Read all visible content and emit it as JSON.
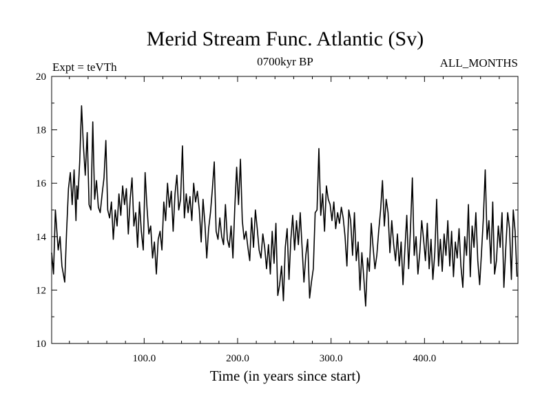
{
  "chart_data": {
    "type": "line",
    "title": "Merid Stream Func. Atlantic (Sv)",
    "subtitle": "0700kyr BP",
    "left_note": "Expt = teVTh",
    "right_note": "ALL_MONTHS",
    "xlabel": "Time (in years since start)",
    "ylabel": "",
    "xlim": [
      1,
      500
    ],
    "ylim": [
      10,
      20
    ],
    "xticks": [
      100,
      200,
      300,
      400
    ],
    "xtick_labels": [
      "100.0",
      "200.0",
      "300.0",
      "400.0"
    ],
    "yticks": [
      10,
      12,
      14,
      16,
      18,
      20
    ],
    "ytick_labels": [
      "10",
      "12",
      "14",
      "16",
      "18",
      "20"
    ],
    "grid": false,
    "series": [
      {
        "color": "#000000",
        "x": [
          1,
          3,
          5,
          8,
          10,
          12,
          15,
          17,
          19,
          21,
          23,
          25,
          27,
          28,
          29,
          31,
          33,
          35,
          37,
          39,
          41,
          43,
          45,
          47,
          49,
          51,
          53,
          55,
          57,
          59,
          61,
          63,
          65,
          67,
          69,
          71,
          73,
          75,
          77,
          79,
          81,
          83,
          85,
          87,
          89,
          91,
          93,
          95,
          97,
          99,
          101,
          103,
          105,
          107,
          109,
          111,
          113,
          115,
          117,
          119,
          121,
          123,
          125,
          127,
          129,
          131,
          133,
          135,
          137,
          139,
          141,
          143,
          145,
          147,
          149,
          151,
          153,
          155,
          157,
          159,
          161,
          163,
          165,
          167,
          169,
          171,
          173,
          175,
          177,
          179,
          181,
          183,
          185,
          187,
          189,
          191,
          193,
          195,
          197,
          199,
          201,
          203,
          205,
          207,
          209,
          211,
          213,
          215,
          217,
          219,
          221,
          223,
          225,
          227,
          229,
          231,
          233,
          235,
          237,
          239,
          241,
          243,
          245,
          247,
          249,
          251,
          253,
          255,
          257,
          259,
          261,
          263,
          265,
          267,
          269,
          271,
          273,
          275,
          277,
          279,
          281,
          283,
          285,
          287,
          289,
          291,
          293,
          295,
          297,
          299,
          301,
          303,
          305,
          307,
          309,
          311,
          313,
          315,
          317,
          319,
          321,
          323,
          325,
          327,
          329,
          331,
          333,
          335,
          337,
          339,
          341,
          343,
          345,
          347,
          349,
          351,
          353,
          355,
          357,
          359,
          361,
          363,
          365,
          367,
          369,
          371,
          373,
          375,
          377,
          379,
          381,
          383,
          385,
          387,
          389,
          391,
          393,
          395,
          397,
          399,
          401,
          403,
          405,
          407,
          409,
          411,
          413,
          415,
          417,
          419,
          421,
          423,
          425,
          427,
          429,
          431,
          433,
          435,
          437,
          439,
          441,
          443,
          445,
          447,
          449,
          451,
          453,
          455,
          457,
          459,
          461,
          463,
          465,
          467,
          469,
          471,
          473,
          475,
          477,
          479,
          481,
          483,
          485,
          487,
          489,
          491,
          493,
          495,
          497,
          499
        ],
        "y": [
          13.4,
          12.6,
          15.0,
          13.5,
          14.0,
          12.9,
          12.3,
          14.2,
          15.8,
          16.4,
          15.2,
          16.5,
          14.6,
          15.9,
          15.4,
          16.8,
          18.9,
          17.4,
          16.3,
          17.9,
          15.2,
          15.0,
          18.3,
          15.4,
          16.1,
          15.1,
          14.9,
          15.6,
          16.2,
          17.6,
          15.0,
          14.7,
          15.3,
          13.9,
          15.0,
          14.4,
          15.6,
          14.8,
          15.9,
          15.2,
          15.8,
          14.1,
          15.4,
          16.2,
          14.4,
          14.9,
          13.6,
          15.3,
          14.2,
          13.5,
          16.4,
          15.1,
          14.1,
          14.4,
          13.2,
          13.8,
          12.6,
          13.9,
          14.2,
          13.5,
          15.3,
          14.6,
          16.0,
          15.1,
          15.7,
          14.2,
          15.6,
          16.3,
          15.0,
          15.4,
          17.4,
          14.7,
          15.6,
          14.9,
          15.5,
          14.6,
          16.0,
          15.3,
          15.7,
          15.0,
          13.8,
          15.4,
          14.5,
          13.2,
          14.3,
          14.9,
          15.8,
          16.8,
          14.2,
          13.9,
          14.7,
          14.0,
          13.7,
          15.2,
          13.9,
          13.6,
          14.4,
          13.2,
          15.1,
          16.6,
          15.2,
          16.9,
          14.6,
          13.9,
          14.2,
          13.6,
          13.1,
          14.7,
          13.6,
          15.0,
          14.3,
          13.5,
          13.2,
          14.1,
          13.6,
          12.8,
          13.7,
          12.6,
          14.2,
          13.0,
          14.5,
          11.8,
          12.2,
          12.9,
          11.6,
          13.6,
          14.3,
          12.4,
          13.9,
          14.8,
          13.5,
          14.6,
          13.7,
          14.9,
          13.6,
          12.3,
          13.3,
          13.9,
          11.7,
          12.3,
          12.8,
          14.9,
          15.0,
          17.3,
          14.8,
          15.6,
          14.2,
          15.9,
          15.4,
          15.2,
          14.6,
          15.3,
          14.3,
          14.9,
          14.5,
          15.1,
          14.7,
          14.0,
          12.9,
          15.0,
          14.6,
          13.3,
          14.9,
          13.1,
          13.8,
          12.0,
          13.4,
          12.5,
          11.4,
          13.2,
          12.7,
          14.5,
          13.6,
          12.8,
          13.3,
          14.2,
          15.0,
          16.1,
          14.4,
          15.4,
          14.9,
          13.4,
          14.6,
          13.7,
          13.1,
          14.1,
          12.9,
          13.8,
          12.2,
          13.5,
          14.8,
          12.8,
          14.3,
          16.2,
          13.3,
          14.0,
          12.6,
          13.4,
          14.6,
          13.9,
          13.1,
          14.5,
          12.8,
          13.9,
          12.4,
          13.4,
          15.4,
          12.9,
          13.9,
          12.7,
          14.1,
          13.3,
          14.6,
          12.9,
          14.2,
          12.5,
          13.8,
          13.2,
          14.3,
          12.9,
          12.1,
          14.0,
          13.3,
          15.2,
          12.5,
          14.4,
          13.6,
          14.9,
          13.1,
          12.2,
          13.4,
          14.7,
          16.5,
          13.9,
          14.6,
          13.0,
          15.3,
          12.6,
          13.1,
          14.4,
          13.6,
          14.9,
          12.1,
          13.6,
          14.9,
          14.3,
          12.4,
          15.0,
          14.2,
          12.5
        ]
      }
    ]
  }
}
